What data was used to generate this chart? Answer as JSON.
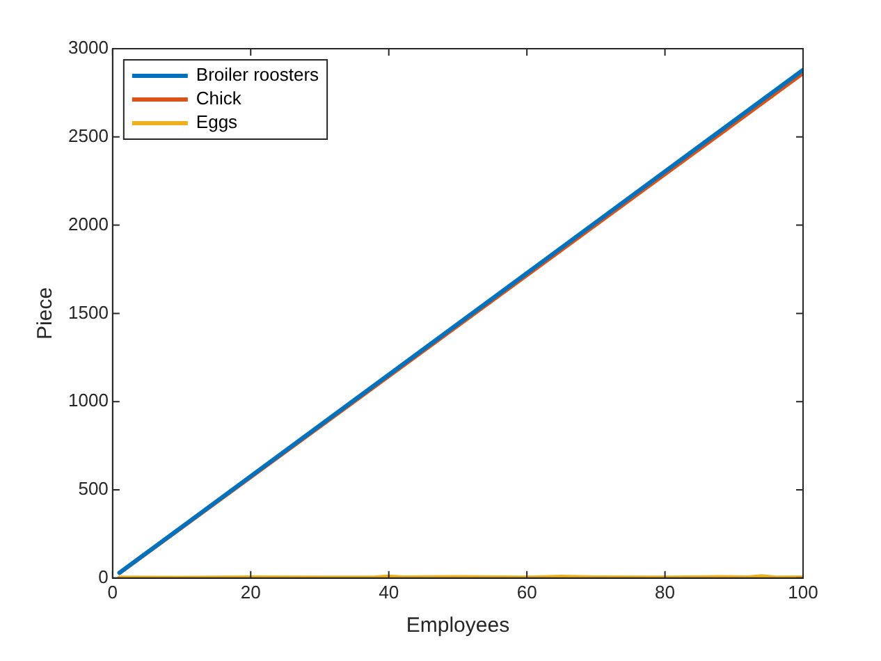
{
  "chart_data": {
    "type": "line",
    "xlabel": "Employees",
    "ylabel": "Piece",
    "xlim": [
      0,
      100
    ],
    "xticks": [
      0,
      20,
      40,
      60,
      80,
      100
    ],
    "ylim": [
      0,
      3000
    ],
    "yticks": [
      0,
      500,
      1000,
      1500,
      2000,
      2500,
      3000
    ],
    "grid": false,
    "legend": "top left",
    "marker": "none",
    "line_style": "solid",
    "series": [
      {
        "name": "Broiler roosters",
        "color": "#0072bd",
        "x": [
          1,
          100
        ],
        "values": [
          30,
          2880
        ]
      },
      {
        "name": "Chick",
        "color": "#d95319",
        "x": [
          1,
          100
        ],
        "values": [
          29,
          2862
        ]
      },
      {
        "name": "Eggs",
        "color": "#edb120",
        "x": [
          1,
          10,
          20,
          30,
          38,
          40,
          42,
          50,
          60,
          65,
          70,
          80,
          88,
          92,
          94,
          96,
          100
        ],
        "values": [
          2,
          1,
          3,
          2,
          3,
          8,
          3,
          5,
          2,
          7,
          3,
          2,
          5,
          3,
          10,
          2,
          3
        ]
      }
    ]
  }
}
